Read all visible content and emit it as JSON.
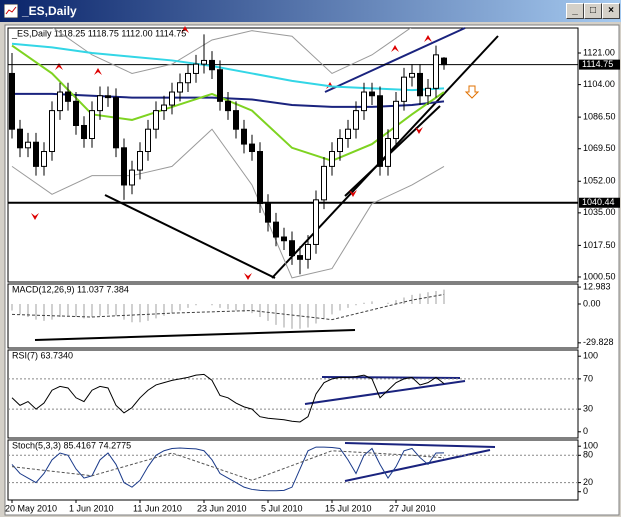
{
  "window": {
    "title": "_ES,Daily"
  },
  "chart_data": [
    {
      "type": "candlestick",
      "label": "_ES,Daily  1118.25 1118.75 1112.00 1114.75",
      "ylim": [
        997.8,
        1134.45
      ],
      "yticks": [
        {
          "value": 1121,
          "label": "1121.00"
        },
        {
          "value": 1104,
          "label": "1104.00"
        },
        {
          "value": 1086.5,
          "label": "1086.50"
        },
        {
          "value": 1069.5,
          "label": "1069.50"
        },
        {
          "value": 1052,
          "label": "1052.00"
        },
        {
          "value": 1035,
          "label": "1035.00"
        },
        {
          "value": 1017.5,
          "label": "1017.50"
        },
        {
          "value": 1000.5,
          "label": "1000.50"
        }
      ],
      "xticks": [
        {
          "value": 0,
          "label": "20 May 2010"
        },
        {
          "value": 8,
          "label": "1 Jun 2010"
        },
        {
          "value": 16,
          "label": "11 Jun 2010"
        },
        {
          "value": 24,
          "label": "23 Jun 2010"
        },
        {
          "value": 32,
          "label": "5 Jul 2010"
        },
        {
          "value": 40,
          "label": "15 Jul 2010"
        },
        {
          "value": 48,
          "label": "27 Jul 2010"
        }
      ],
      "candles": {
        "open": [
          1110,
          1080,
          1070,
          1073,
          1060,
          1068,
          1090,
          1100,
          1095,
          1082,
          1075,
          1090,
          1098,
          1097,
          1070,
          1050,
          1058,
          1068,
          1080,
          1090,
          1093,
          1100,
          1105,
          1110,
          1115,
          1117,
          1112,
          1095,
          1090,
          1080,
          1072,
          1068,
          1040,
          1030,
          1022,
          1020,
          1012,
          1010,
          1018,
          1042,
          1060,
          1068,
          1075,
          1080,
          1090,
          1100,
          1098,
          1060,
          1075,
          1095,
          1108,
          1110,
          1098,
          1102,
          1118.25
        ],
        "high": [
          1121,
          1085,
          1078,
          1078,
          1073,
          1095,
          1105,
          1105,
          1100,
          1087,
          1095,
          1103,
          1103,
          1102,
          1075,
          1063,
          1073,
          1085,
          1095,
          1098,
          1105,
          1110,
          1115,
          1120,
          1131,
          1122,
          1117,
          1100,
          1095,
          1085,
          1077,
          1073,
          1045,
          1035,
          1027,
          1025,
          1017,
          1023,
          1047,
          1065,
          1073,
          1080,
          1085,
          1095,
          1105,
          1105,
          1103,
          1080,
          1100,
          1113,
          1115,
          1115,
          1107,
          1125,
          1118.75
        ],
        "low": [
          1075,
          1065,
          1065,
          1055,
          1055,
          1063,
          1085,
          1090,
          1077,
          1070,
          1070,
          1085,
          1092,
          1065,
          1042,
          1045,
          1053,
          1063,
          1075,
          1085,
          1088,
          1095,
          1100,
          1105,
          1110,
          1107,
          1090,
          1085,
          1075,
          1067,
          1063,
          1035,
          1025,
          1017,
          1015,
          1007,
          1002,
          1005,
          1013,
          1037,
          1055,
          1063,
          1070,
          1075,
          1085,
          1093,
          1055,
          1055,
          1070,
          1090,
          1103,
          1093,
          1093,
          1097,
          1112
        ],
        "close": [
          1080,
          1070,
          1073,
          1060,
          1068,
          1090,
          1100,
          1095,
          1082,
          1075,
          1090,
          1098,
          1097,
          1070,
          1050,
          1058,
          1068,
          1080,
          1090,
          1093,
          1100,
          1105,
          1110,
          1115,
          1117,
          1112,
          1095,
          1090,
          1080,
          1072,
          1068,
          1040,
          1030,
          1022,
          1020,
          1012,
          1010,
          1018,
          1042,
          1060,
          1068,
          1075,
          1080,
          1090,
          1100,
          1098,
          1060,
          1075,
          1095,
          1108,
          1110,
          1098,
          1102,
          1120,
          1114.75
        ]
      },
      "overlays": [
        {
          "color": "#9a9a9a",
          "x": [
            0,
            5,
            10,
            15,
            20,
            25,
            30,
            35,
            40,
            45,
            50,
            54
          ],
          "values": [
            1135,
            1135,
            1120,
            1110,
            1115,
            1128,
            1133,
            1130,
            1110,
            1120,
            1135,
            1140
          ]
        },
        {
          "color": "#9a9a9a",
          "x": [
            0,
            5,
            10,
            15,
            20,
            25,
            30,
            35,
            40,
            45,
            50,
            54
          ],
          "values": [
            1060,
            1045,
            1055,
            1055,
            1060,
            1080,
            1050,
            1000,
            1005,
            1040,
            1050,
            1060
          ]
        },
        {
          "color": "#33d6e6",
          "x": [
            0,
            5,
            10,
            15,
            20,
            25,
            30,
            35,
            40,
            45,
            50,
            54
          ],
          "values": [
            1126,
            1124,
            1121,
            1119,
            1117,
            1114,
            1110,
            1106,
            1103,
            1102,
            1101,
            1102
          ]
        },
        {
          "color": "#1a237e",
          "x": [
            0,
            5,
            10,
            15,
            20,
            25,
            30,
            35,
            40,
            45,
            50,
            54
          ],
          "values": [
            1099,
            1099,
            1098,
            1097,
            1097,
            1097,
            1096,
            1093,
            1092,
            1092,
            1093,
            1095
          ]
        },
        {
          "color": "#7ed321",
          "x": [
            0,
            5,
            10,
            15,
            20,
            25,
            30,
            35,
            40,
            45,
            50,
            54
          ],
          "values": [
            1125,
            1110,
            1088,
            1085,
            1092,
            1099,
            1090,
            1070,
            1063,
            1072,
            1088,
            1100
          ]
        }
      ],
      "price_lines": [
        1114.75,
        1040.44
      ]
    },
    {
      "type": "macd",
      "label": "MACD(12,26,9) 11.037 7.384",
      "ylim": [
        -33.79,
        15.36
      ],
      "yticks": [
        12.983,
        {
          "value": 0,
          "label": "0.00"
        },
        -29.828
      ],
      "series": [
        {
          "kind": "hist",
          "color": "#a0a0a0",
          "values": [
            -5,
            -8,
            -10,
            -12,
            -13,
            -12,
            -10,
            -9,
            -10,
            -11,
            -10,
            -9,
            -8,
            -9,
            -12,
            -14,
            -14,
            -13,
            -11,
            -9,
            -7,
            -5,
            -3,
            -1,
            0,
            -1,
            -3,
            -4,
            -5,
            -6,
            -7,
            -10,
            -13,
            -16,
            -18,
            -19,
            -19,
            -18,
            -15,
            -11,
            -8,
            -5,
            -3,
            -1,
            1,
            2,
            0,
            1,
            3,
            5,
            7,
            8,
            9,
            10,
            11.037
          ]
        },
        {
          "kind": "dash",
          "color": "#404040",
          "x": [
            0,
            10,
            20,
            30,
            40,
            50,
            54
          ],
          "values": [
            -8,
            -10,
            -7,
            -5,
            -12,
            3,
            7.384
          ]
        }
      ]
    },
    {
      "type": "rsi",
      "label": "RSI(7) 63.7340",
      "ylim": [
        -8.2,
        108.2
      ],
      "yticks": [
        100,
        70,
        30,
        0
      ],
      "levels": [
        70,
        30
      ],
      "series": [
        {
          "kind": "line",
          "color": "#000000",
          "values": [
            45,
            35,
            40,
            30,
            38,
            55,
            60,
            58,
            45,
            40,
            55,
            60,
            58,
            35,
            25,
            32,
            45,
            55,
            62,
            65,
            68,
            70,
            72,
            75,
            76,
            68,
            48,
            45,
            38,
            33,
            30,
            20,
            18,
            17,
            16,
            14,
            13,
            20,
            50,
            65,
            70,
            72,
            72,
            73,
            75,
            70,
            45,
            55,
            65,
            70,
            72,
            62,
            65,
            72,
            63.734
          ]
        }
      ]
    },
    {
      "type": "stoch",
      "label": "Stoch(5,3,3) 85.4167 74.2775",
      "ylim": [
        -18.2,
        113.6
      ],
      "yticks": [
        100,
        80,
        20,
        0
      ],
      "levels": [
        80,
        20
      ],
      "series": [
        {
          "kind": "line",
          "color": "#1a3a8a",
          "values": [
            60,
            40,
            30,
            20,
            40,
            70,
            85,
            80,
            50,
            30,
            35,
            70,
            85,
            60,
            20,
            10,
            25,
            55,
            80,
            90,
            95,
            96,
            95,
            94,
            90,
            70,
            40,
            30,
            20,
            10,
            5,
            3,
            2,
            2,
            3,
            10,
            50,
            90,
            98,
            98,
            97,
            95,
            70,
            40,
            80,
            95,
            60,
            30,
            55,
            90,
            95,
            75,
            60,
            85,
            85.4167
          ]
        },
        {
          "kind": "dash",
          "color": "#555555",
          "x": [
            0,
            10,
            20,
            30,
            40,
            50,
            54
          ],
          "values": [
            55,
            35,
            85,
            25,
            90,
            80,
            74.2775
          ]
        }
      ]
    }
  ]
}
